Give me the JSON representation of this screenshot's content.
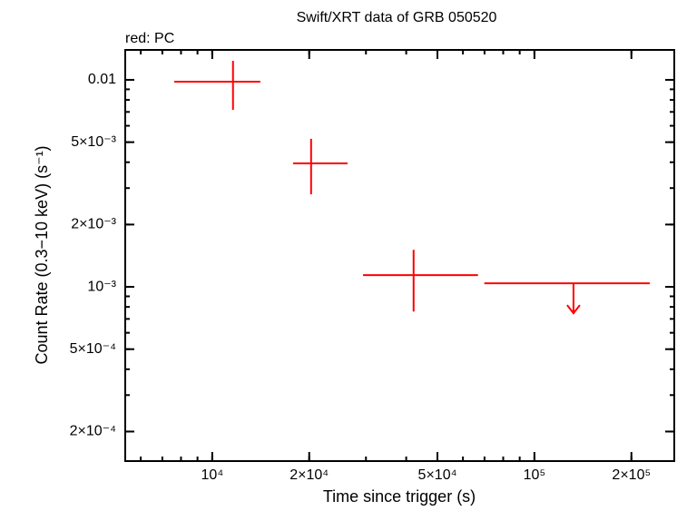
{
  "chart_data": {
    "type": "errorbar",
    "title": "Swift/XRT data of GRB 050520",
    "subtitle": "red: PC",
    "xlabel": "Time since trigger (s)",
    "ylabel": "Count Rate (0.3−10 keV) (s⁻¹)",
    "xscale": "log",
    "yscale": "log",
    "xlim": [
      5370,
      271700
    ],
    "ylim": [
      0.000144,
      0.01395
    ],
    "xticks": [
      {
        "value": 10000,
        "label": "10⁴"
      },
      {
        "value": 20000,
        "label": "2×10⁴"
      },
      {
        "value": 50000,
        "label": "5×10⁴"
      },
      {
        "value": 100000,
        "label": "10⁵"
      },
      {
        "value": 200000,
        "label": "2×10⁵"
      }
    ],
    "yticks": [
      {
        "value": 0.0002,
        "label": "2×10⁻⁴"
      },
      {
        "value": 0.0005,
        "label": "5×10⁻⁴"
      },
      {
        "value": 0.001,
        "label": "10⁻³"
      },
      {
        "value": 0.002,
        "label": "2×10⁻³"
      },
      {
        "value": 0.005,
        "label": "5×10⁻³"
      },
      0.01
    ],
    "series": [
      {
        "name": "PC",
        "color": "#ff0000",
        "x": [
          11600,
          20270,
          42170,
          132200
        ],
        "x_low": [
          7620,
          17820,
          29380,
          69900
        ],
        "x_high": [
          14100,
          26300,
          66800,
          228000
        ],
        "values": [
          0.0098,
          0.00395,
          0.00114,
          0.00104
        ],
        "y_low": [
          0.00716,
          0.0028,
          0.00076,
          null
        ],
        "y_high": [
          0.01236,
          0.00519,
          0.00151,
          null
        ],
        "upper_limit": [
          false,
          false,
          false,
          true
        ]
      }
    ]
  }
}
